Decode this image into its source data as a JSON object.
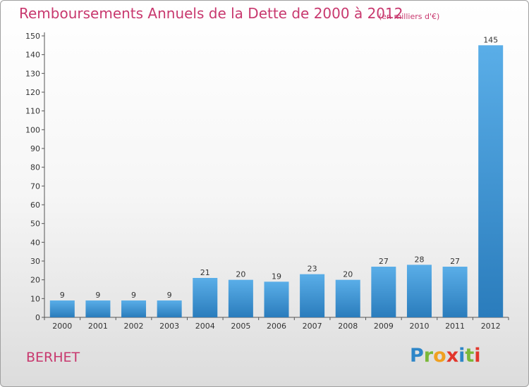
{
  "header": {
    "title": "Remboursements Annuels de la Dette de 2000 à 2012",
    "units": "(en milliers d'€)"
  },
  "footer": {
    "town": "BERHET",
    "logo": "Proxiti"
  },
  "colors": {
    "title": "#c8386e",
    "bar_top": "#5aaee8",
    "bar_bottom": "#2a7cbc",
    "axis": "#555555"
  },
  "chart_data": {
    "type": "bar",
    "title": "Remboursements Annuels de la Dette de 2000 à 2012",
    "xlabel": "",
    "ylabel": "",
    "categories": [
      "2000",
      "2001",
      "2002",
      "2003",
      "2004",
      "2005",
      "2006",
      "2007",
      "2008",
      "2009",
      "2010",
      "2011",
      "2012"
    ],
    "values": [
      9,
      9,
      9,
      9,
      21,
      20,
      19,
      23,
      20,
      27,
      28,
      27,
      145
    ],
    "ylim": [
      0,
      150
    ],
    "yticks": [
      0,
      10,
      20,
      30,
      40,
      50,
      60,
      70,
      80,
      90,
      100,
      110,
      120,
      130,
      140,
      150
    ],
    "grid": false,
    "legend": "none"
  }
}
